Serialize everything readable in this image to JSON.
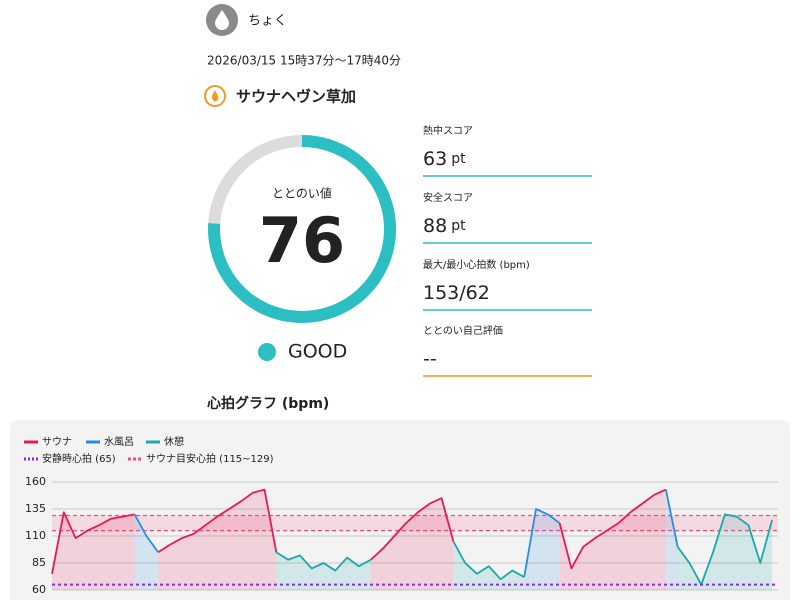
{
  "header": {
    "user": "ちょく",
    "datetime": "2026/03/15 15時37分〜17時40分",
    "facility": "サウナヘヴン草加"
  },
  "score": {
    "label": "ととのい値",
    "value": 76,
    "rating": "GOOD"
  },
  "stats": [
    {
      "label": "熱中スコア",
      "value": 63,
      "unit": "pt"
    },
    {
      "label": "安全スコア",
      "value": 88,
      "unit": "pt"
    },
    {
      "label": "最大/最小心拍数 (bpm)",
      "value": "153/62"
    },
    {
      "label": "ととのい自己評価",
      "value": "--"
    }
  ],
  "graph_title": "心拍グラフ (bpm)",
  "chart_data": {
    "type": "line",
    "x": [
      0,
      2,
      4,
      6,
      8,
      10,
      12,
      14,
      16,
      18,
      20,
      22,
      24,
      26,
      28,
      30,
      32,
      34,
      36,
      38,
      40,
      42,
      44,
      46,
      48,
      50,
      52,
      54,
      56,
      58,
      60,
      62,
      64,
      66,
      68,
      70,
      72,
      74,
      76,
      78,
      80,
      82,
      84,
      86,
      88,
      90,
      92,
      94,
      96,
      98,
      100,
      102,
      104,
      106,
      108,
      110,
      112,
      114,
      116,
      118,
      120,
      122
    ],
    "xlim": [
      0,
      123
    ],
    "ylim": [
      60,
      160
    ],
    "yticks": [
      60,
      85,
      110,
      135,
      160
    ],
    "grid": true,
    "series": [
      {
        "name": "サウナ",
        "color": "#e8185a",
        "values": [
          75,
          132,
          108,
          115,
          120,
          126,
          128,
          130,
          null,
          95,
          102,
          108,
          112,
          120,
          128,
          135,
          142,
          150,
          153,
          95,
          null,
          null,
          null,
          null,
          null,
          null,
          null,
          88,
          98,
          110,
          122,
          132,
          140,
          145,
          105,
          null,
          null,
          null,
          null,
          null,
          null,
          null,
          null,
          122,
          80,
          100,
          108,
          115,
          122,
          132,
          140,
          148,
          153,
          null,
          null,
          null,
          null,
          null,
          null,
          null,
          null,
          null
        ]
      },
      {
        "name": "水風呂",
        "color": "#2b8be0",
        "values": [
          null,
          null,
          null,
          null,
          null,
          null,
          null,
          130,
          110,
          95,
          null,
          null,
          null,
          null,
          null,
          null,
          null,
          null,
          null,
          null,
          null,
          null,
          null,
          null,
          null,
          null,
          null,
          null,
          null,
          null,
          null,
          null,
          null,
          null,
          null,
          null,
          null,
          null,
          null,
          null,
          72,
          135,
          130,
          122,
          null,
          null,
          null,
          null,
          null,
          null,
          null,
          null,
          153,
          100,
          null,
          null,
          null,
          null,
          null,
          null,
          null,
          null
        ]
      },
      {
        "name": "休憩",
        "color": "#1aa8a8",
        "values": [
          null,
          null,
          null,
          null,
          null,
          null,
          null,
          null,
          null,
          null,
          null,
          null,
          null,
          null,
          null,
          null,
          null,
          null,
          null,
          95,
          88,
          92,
          80,
          85,
          78,
          90,
          82,
          88,
          null,
          null,
          null,
          null,
          null,
          null,
          105,
          85,
          75,
          82,
          70,
          78,
          72,
          null,
          null,
          null,
          null,
          null,
          null,
          null,
          null,
          null,
          null,
          null,
          null,
          100,
          85,
          65,
          95,
          130,
          128,
          120,
          85,
          125
        ]
      }
    ],
    "rest_hr": {
      "label": "安静時心拍 (65)",
      "value": 65,
      "color": "#8a2be2"
    },
    "target": {
      "label": "サウナ目安心拍 (115~129)",
      "range": [
        115,
        129
      ],
      "color": "#f0507a"
    }
  }
}
